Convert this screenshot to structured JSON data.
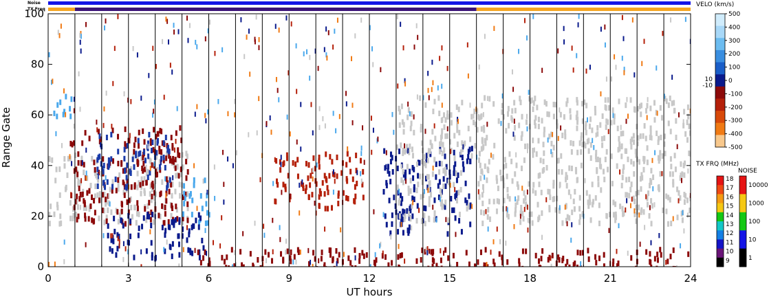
{
  "chart_data": {
    "type": "heatmap",
    "xlabel": "UT hours",
    "ylabel": "Range Gate",
    "xlim": [
      0,
      24
    ],
    "ylim": [
      0,
      100
    ],
    "x_ticks": [
      0,
      3,
      6,
      9,
      12,
      15,
      18,
      21,
      24
    ],
    "y_ticks": [
      0,
      20,
      40,
      60,
      80,
      100
    ],
    "scan_boundaries_ut": [
      1.0,
      2.0,
      3.0,
      4.0,
      5.0,
      6.0,
      7.0,
      8.0,
      9.0,
      10.0,
      11.0,
      12.0,
      13.0,
      14.0,
      15.0,
      16.0,
      17.0,
      18.0,
      19.0,
      20.0,
      21.0,
      22.0,
      23.0
    ],
    "top_bars": {
      "noise_label": "Noise",
      "txfreq_label": "TX Freq",
      "noise_color": "#1414e6",
      "txfreq_segments": [
        {
          "start": 0.0,
          "end": 1.0,
          "color": "#f5a623"
        },
        {
          "start": 1.0,
          "end": 16.0,
          "color": "#3c1478"
        },
        {
          "start": 16.0,
          "end": 24.0,
          "color": "#f5a623"
        }
      ]
    },
    "ground_scatter_color": "#c8c8c8",
    "regions": [
      {
        "name": "ground-scatter-early",
        "t": [
          0.0,
          5.2
        ],
        "g": [
          18,
          46
        ],
        "color": "#c8c8c8"
      },
      {
        "name": "neg-vel-early",
        "t": [
          0.8,
          5.2
        ],
        "g": [
          18,
          56
        ],
        "color": "#8c0a0a"
      },
      {
        "name": "pos-vel-early",
        "t": [
          1.8,
          4.6
        ],
        "g": [
          32,
          54
        ],
        "color": "#1a3aa8"
      },
      {
        "name": "light-blue-bursts",
        "t": [
          5.0,
          6.0
        ],
        "g": [
          18,
          36
        ],
        "color": "#4aa8ec"
      },
      {
        "name": "light-blue-high",
        "t": [
          0.1,
          0.9
        ],
        "g": [
          60,
          70
        ],
        "color": "#4aa8ec"
      },
      {
        "name": "dark-blue-low",
        "t": [
          2.2,
          5.8
        ],
        "g": [
          4,
          22
        ],
        "color": "#0a1a8c"
      },
      {
        "name": "red-cloud-mid",
        "t": [
          8.4,
          11.8
        ],
        "g": [
          24,
          46
        ],
        "color": "#b4200a"
      },
      {
        "name": "blue-dark-mid",
        "t": [
          12.5,
          15.8
        ],
        "g": [
          14,
          48
        ],
        "color": "#0a1a8c"
      },
      {
        "name": "ground-scatter-late",
        "t": [
          13.0,
          24.0
        ],
        "g": [
          18,
          68
        ],
        "color": "#c8c8c8"
      },
      {
        "name": "mixed-low-band",
        "t": [
          5.5,
          24.0
        ],
        "g": [
          0,
          8
        ],
        "color": "#8c0a0a"
      }
    ],
    "velocity_colorbar": {
      "title": "VELO (km/s)",
      "tick_labels": [
        "500",
        "400",
        "300",
        "200",
        "100",
        "0",
        "-100",
        "-200",
        "-300",
        "-400",
        "-500"
      ],
      "threshold_labels": [
        "10",
        "-10"
      ],
      "colors": [
        "#d0ecfc",
        "#a8d8f8",
        "#6cbcf0",
        "#3a8ee0",
        "#1a5ec8",
        "#0a1a8c",
        "#8c0a0a",
        "#b4200a",
        "#d84a0a",
        "#f07a14",
        "#f8c88c"
      ]
    },
    "txfreq_colorbar": {
      "title": "TX FRQ (MHz)",
      "tick_labels": [
        "18",
        "17",
        "16",
        "15",
        "14",
        "13",
        "12",
        "11",
        "10",
        "9"
      ],
      "colors": [
        "#e61414",
        "#f04a14",
        "#f59a14",
        "#f5c814",
        "#14c814",
        "#14c8c8",
        "#1480e6",
        "#1414c8",
        "#6a1478",
        "#000000"
      ]
    },
    "noise_colorbar": {
      "title": "NOISE",
      "tick_labels": [
        "10000",
        "1000",
        "100",
        "10",
        "1"
      ],
      "colors": [
        "#e61414",
        "#f5c814",
        "#14c814",
        "#1414e6",
        "#000000"
      ]
    }
  }
}
